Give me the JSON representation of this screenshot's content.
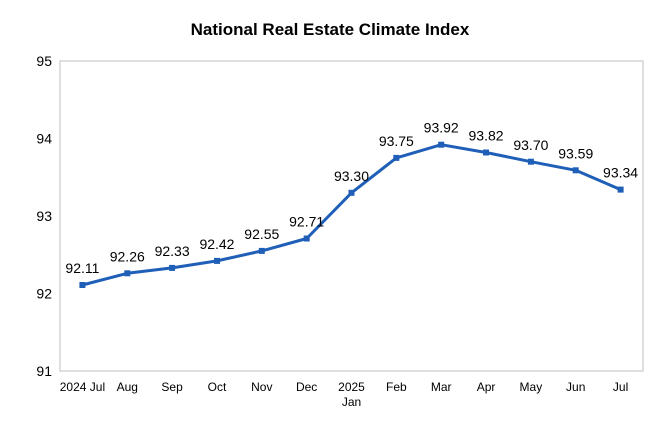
{
  "chart_data": {
    "type": "line",
    "title": "National Real Estate Climate Index",
    "xlabel": "",
    "ylabel": "",
    "categories": [
      [
        "2024 Jul"
      ],
      [
        "Aug"
      ],
      [
        "Sep"
      ],
      [
        "Oct"
      ],
      [
        "Nov"
      ],
      [
        "Dec"
      ],
      [
        "2025",
        "Jan"
      ],
      [
        "Feb"
      ],
      [
        "Mar"
      ],
      [
        "Apr"
      ],
      [
        "May"
      ],
      [
        "Jun"
      ],
      [
        "Jul"
      ]
    ],
    "series": [
      {
        "values": [
          92.11,
          92.26,
          92.33,
          92.42,
          92.55,
          92.71,
          93.3,
          93.75,
          93.92,
          93.82,
          93.7,
          93.59,
          93.34
        ],
        "labels": [
          "92.11",
          "92.26",
          "92.33",
          "92.42",
          "92.55",
          "92.71",
          "93.30",
          "93.75",
          "93.92",
          "93.82",
          "93.70",
          "93.59",
          "93.34"
        ],
        "color": "#1f5fb8"
      }
    ],
    "ylim": [
      91,
      95
    ],
    "yticks": [
      "91",
      "92",
      "93",
      "94",
      "95"
    ],
    "grid": false,
    "legend": "none",
    "marker": "square"
  }
}
